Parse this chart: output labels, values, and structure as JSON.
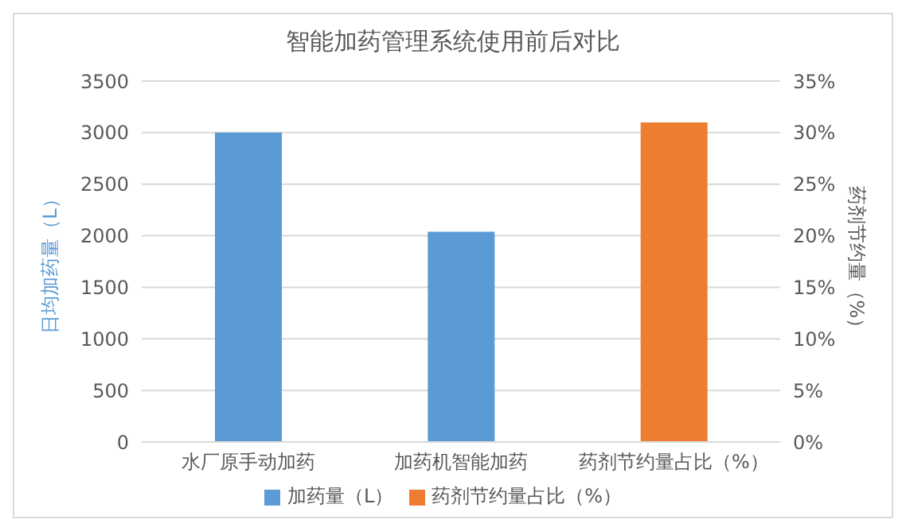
{
  "chart_data": {
    "type": "bar",
    "title": "智能加药管理系统使用前后对比",
    "ylabel": "日均加药量（L）",
    "y2label": "药剂节约量（%）",
    "categories": [
      "水厂原手动加药",
      "加药机智能加药",
      "药剂节约量占比（%）"
    ],
    "series": [
      {
        "name": "加药量（L）",
        "color": "#5b9bd5",
        "values": [
          3000,
          2040,
          null
        ]
      },
      {
        "name": "药剂节约量占比（%）",
        "color": "#ed7d31",
        "values": [
          null,
          null,
          31
        ],
        "axis": "y2"
      }
    ],
    "ylim": [
      0,
      3500
    ],
    "yticks": [
      0,
      500,
      1000,
      1500,
      2000,
      2500,
      3000,
      3500
    ],
    "y2lim": [
      0,
      35
    ],
    "y2ticks": [
      {
        "value": 0,
        "label": "0%"
      },
      {
        "value": 5,
        "label": "5%"
      },
      {
        "value": 10,
        "label": "10%"
      },
      {
        "value": 15,
        "label": "15%"
      },
      {
        "value": 20,
        "label": "20%"
      },
      {
        "value": 25,
        "label": "25%"
      },
      {
        "value": 30,
        "label": "30%"
      },
      {
        "value": 35,
        "label": "35%"
      }
    ],
    "grid": "y",
    "legend": "bottom"
  }
}
